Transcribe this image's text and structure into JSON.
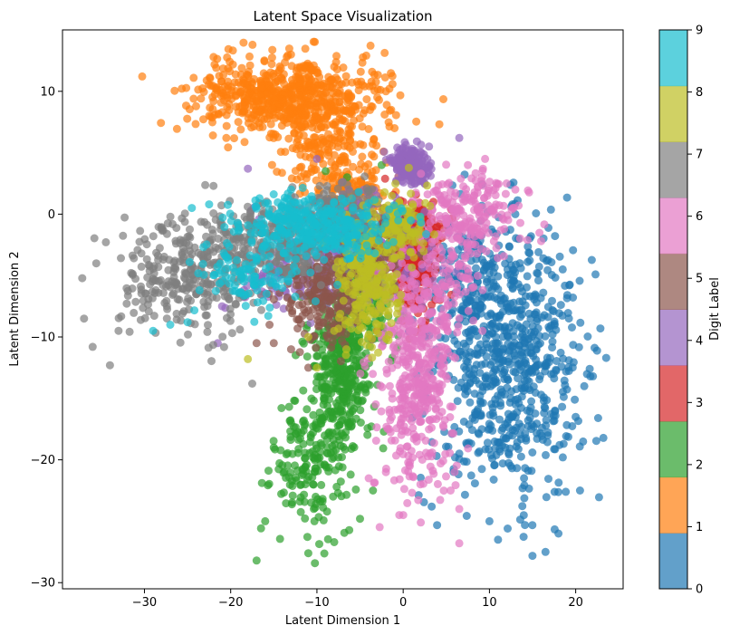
{
  "chart_data": {
    "type": "scatter",
    "title": "Latent Space Visualization",
    "xlabel": "Latent Dimension 1",
    "ylabel": "Latent Dimension 2",
    "xlim": [
      -39.5,
      25.5
    ],
    "ylim": [
      -30.5,
      15.0
    ],
    "xticks": [
      -30,
      -20,
      -10,
      0,
      10,
      20
    ],
    "yticks": [
      -30,
      -20,
      -10,
      0,
      10
    ],
    "xtick_labels": [
      "−30",
      "−20",
      "−10",
      "0",
      "10",
      "20"
    ],
    "ytick_labels": [
      "−30",
      "−20",
      "−10",
      "0",
      "10"
    ],
    "grid": false,
    "marker_alpha": 0.7,
    "colorbar": {
      "label": "Digit Label",
      "ticks": [
        "0",
        "1",
        "2",
        "3",
        "4",
        "5",
        "6",
        "7",
        "8",
        "9"
      ],
      "colors": [
        "#1f77b4",
        "#ff7f0e",
        "#2ca02c",
        "#d62728",
        "#9467bd",
        "#8c564b",
        "#e377c2",
        "#7f7f7f",
        "#bcbd22",
        "#17becf"
      ]
    },
    "series": [
      {
        "label_value": 0,
        "color": "#1f77b4",
        "clusters": [
          {
            "cx": 12,
            "cy": -12,
            "sx": 4.5,
            "sy": 5.5,
            "n": 700
          },
          {
            "cx": 8,
            "cy": -6,
            "sx": 3,
            "sy": 3,
            "n": 150
          }
        ],
        "points": [
          [
            22,
            -13.2
          ],
          [
            21,
            -14
          ],
          [
            20,
            -16.5
          ],
          [
            18.5,
            -4.5
          ],
          [
            16.5,
            -27.5
          ],
          [
            18,
            -26
          ],
          [
            20.5,
            -22.5
          ],
          [
            11,
            -26.5
          ],
          [
            10,
            -25
          ],
          [
            6.5,
            -19.5
          ],
          [
            13,
            0
          ]
        ]
      },
      {
        "label_value": 1,
        "color": "#ff7f0e",
        "clusters": [
          {
            "cx": -13,
            "cy": 9.5,
            "sx": 5.5,
            "sy": 1.6,
            "n": 650
          },
          {
            "cx": -9,
            "cy": 5,
            "sx": 3,
            "sy": 1.5,
            "n": 150
          },
          {
            "cx": -6,
            "cy": 2,
            "sx": 2.2,
            "sy": 0.8,
            "n": 100
          }
        ],
        "points": [
          [
            -13.5,
            12.8
          ],
          [
            -22,
            9.2
          ],
          [
            -22.5,
            8
          ],
          [
            -20.5,
            6.2
          ],
          [
            -2,
            10
          ],
          [
            -3,
            9.5
          ],
          [
            -1,
            7
          ],
          [
            -8,
            12
          ],
          [
            -10,
            11.5
          ]
        ]
      },
      {
        "label_value": 2,
        "color": "#2ca02c",
        "clusters": [
          {
            "cx": -7,
            "cy": -12.5,
            "sx": 1.8,
            "sy": 3.3,
            "n": 400
          },
          {
            "cx": -10.5,
            "cy": -20.5,
            "sx": 2.2,
            "sy": 2.6,
            "n": 180
          },
          {
            "cx": -3.5,
            "cy": -6,
            "sx": 1.5,
            "sy": 2.5,
            "n": 120
          }
        ],
        "points": [
          [
            -17,
            -28.2
          ],
          [
            -11,
            -27.6
          ],
          [
            -8,
            -26.7
          ],
          [
            -5,
            -24.8
          ],
          [
            -16,
            -25
          ],
          [
            -15,
            -19
          ],
          [
            -13,
            -17
          ],
          [
            -9,
            3.5
          ],
          [
            -6.5,
            3
          ],
          [
            -2.5,
            4
          ],
          [
            -3.5,
            -22.5
          ]
        ]
      },
      {
        "label_value": 3,
        "color": "#d62728",
        "clusters": [
          {
            "cx": 1.5,
            "cy": -4,
            "sx": 1.2,
            "sy": 2,
            "n": 220
          },
          {
            "cx": 1,
            "cy": -1,
            "sx": 2,
            "sy": 1.2,
            "n": 80
          }
        ],
        "points": [
          [
            -3,
            -9.5
          ],
          [
            2.5,
            -9
          ],
          [
            -0.5,
            -6.8
          ],
          [
            3.5,
            1
          ],
          [
            0,
            1
          ]
        ]
      },
      {
        "label_value": 4,
        "color": "#9467bd",
        "clusters": [
          {
            "cx": 1,
            "cy": 4,
            "sx": 1.2,
            "sy": 0.7,
            "n": 200
          },
          {
            "cx": -5,
            "cy": -3,
            "sx": 4.5,
            "sy": 2.2,
            "n": 250
          },
          {
            "cx": -13,
            "cy": -5,
            "sx": 3,
            "sy": 1.8,
            "n": 100
          }
        ],
        "points": [
          [
            -18,
            3.7
          ],
          [
            -21.5,
            -10.5
          ],
          [
            -21,
            -7.5
          ],
          [
            -10,
            4.5
          ],
          [
            6.5,
            6.2
          ],
          [
            3,
            5.5
          ]
        ]
      },
      {
        "label_value": 5,
        "color": "#8c564b",
        "clusters": [
          {
            "cx": -9,
            "cy": -6.5,
            "sx": 2.5,
            "sy": 2.2,
            "n": 250
          },
          {
            "cx": -3,
            "cy": -2.5,
            "sx": 2,
            "sy": 1.5,
            "n": 120
          }
        ],
        "points": [
          [
            -15,
            -10.5
          ],
          [
            -15.5,
            -9
          ],
          [
            -13,
            -11
          ],
          [
            -11,
            -12.5
          ],
          [
            -17,
            -10.5
          ]
        ]
      },
      {
        "label_value": 6,
        "color": "#e377c2",
        "clusters": [
          {
            "cx": 1.5,
            "cy": -13,
            "sx": 2.2,
            "sy": 4.5,
            "n": 450
          },
          {
            "cx": 7.5,
            "cy": 0,
            "sx": 3,
            "sy": 1.8,
            "n": 220
          },
          {
            "cx": 5,
            "cy": -6,
            "sx": 2,
            "sy": 2,
            "n": 80
          }
        ],
        "points": [
          [
            6.5,
            -26.8
          ],
          [
            6.5,
            -24
          ],
          [
            0,
            -24.5
          ],
          [
            5.5,
            -22.5
          ],
          [
            12,
            2.5
          ],
          [
            13,
            2
          ],
          [
            16,
            -2.2
          ],
          [
            9.5,
            4.5
          ],
          [
            7.5,
            4
          ],
          [
            -4,
            -21.5
          ],
          [
            -2,
            -21
          ],
          [
            2,
            -22
          ]
        ]
      },
      {
        "label_value": 7,
        "color": "#7f7f7f",
        "clusters": [
          {
            "cx": -25,
            "cy": -5,
            "sx": 4,
            "sy": 2.2,
            "n": 300
          },
          {
            "cx": -15,
            "cy": -2,
            "sx": 3.5,
            "sy": 1.6,
            "n": 250
          },
          {
            "cx": -7,
            "cy": 0,
            "sx": 2.5,
            "sy": 1.2,
            "n": 150
          }
        ],
        "points": [
          [
            -37,
            -8.5
          ],
          [
            -36,
            -10.8
          ],
          [
            -34,
            -12.3
          ],
          [
            -33,
            -9.5
          ],
          [
            -17.5,
            -13.8
          ],
          [
            -22,
            2.3
          ],
          [
            -13,
            1.5
          ]
        ]
      },
      {
        "label_value": 8,
        "color": "#bcbd22",
        "clusters": [
          {
            "cx": -4,
            "cy": -5.5,
            "sx": 1.8,
            "sy": 2.8,
            "n": 280
          },
          {
            "cx": 0,
            "cy": -1,
            "sx": 1.2,
            "sy": 1.2,
            "n": 100
          }
        ],
        "points": [
          [
            -18,
            -11.8
          ],
          [
            -10,
            -12.5
          ],
          [
            -11,
            -10
          ],
          [
            -8,
            -9.5
          ]
        ]
      },
      {
        "label_value": 9,
        "color": "#17becf",
        "clusters": [
          {
            "cx": -10,
            "cy": -1,
            "sx": 4.5,
            "sy": 1.3,
            "n": 350
          },
          {
            "cx": -18,
            "cy": -5,
            "sx": 3,
            "sy": 1.5,
            "n": 100
          }
        ],
        "points": [
          [
            -29,
            -9.5
          ],
          [
            -27,
            -9
          ],
          [
            -25,
            -8.8
          ],
          [
            -22.5,
            0.8
          ],
          [
            -24.5,
            0.5
          ],
          [
            -13,
            2
          ],
          [
            -20.5,
            -3.5
          ],
          [
            -14,
            -6
          ]
        ]
      }
    ]
  }
}
